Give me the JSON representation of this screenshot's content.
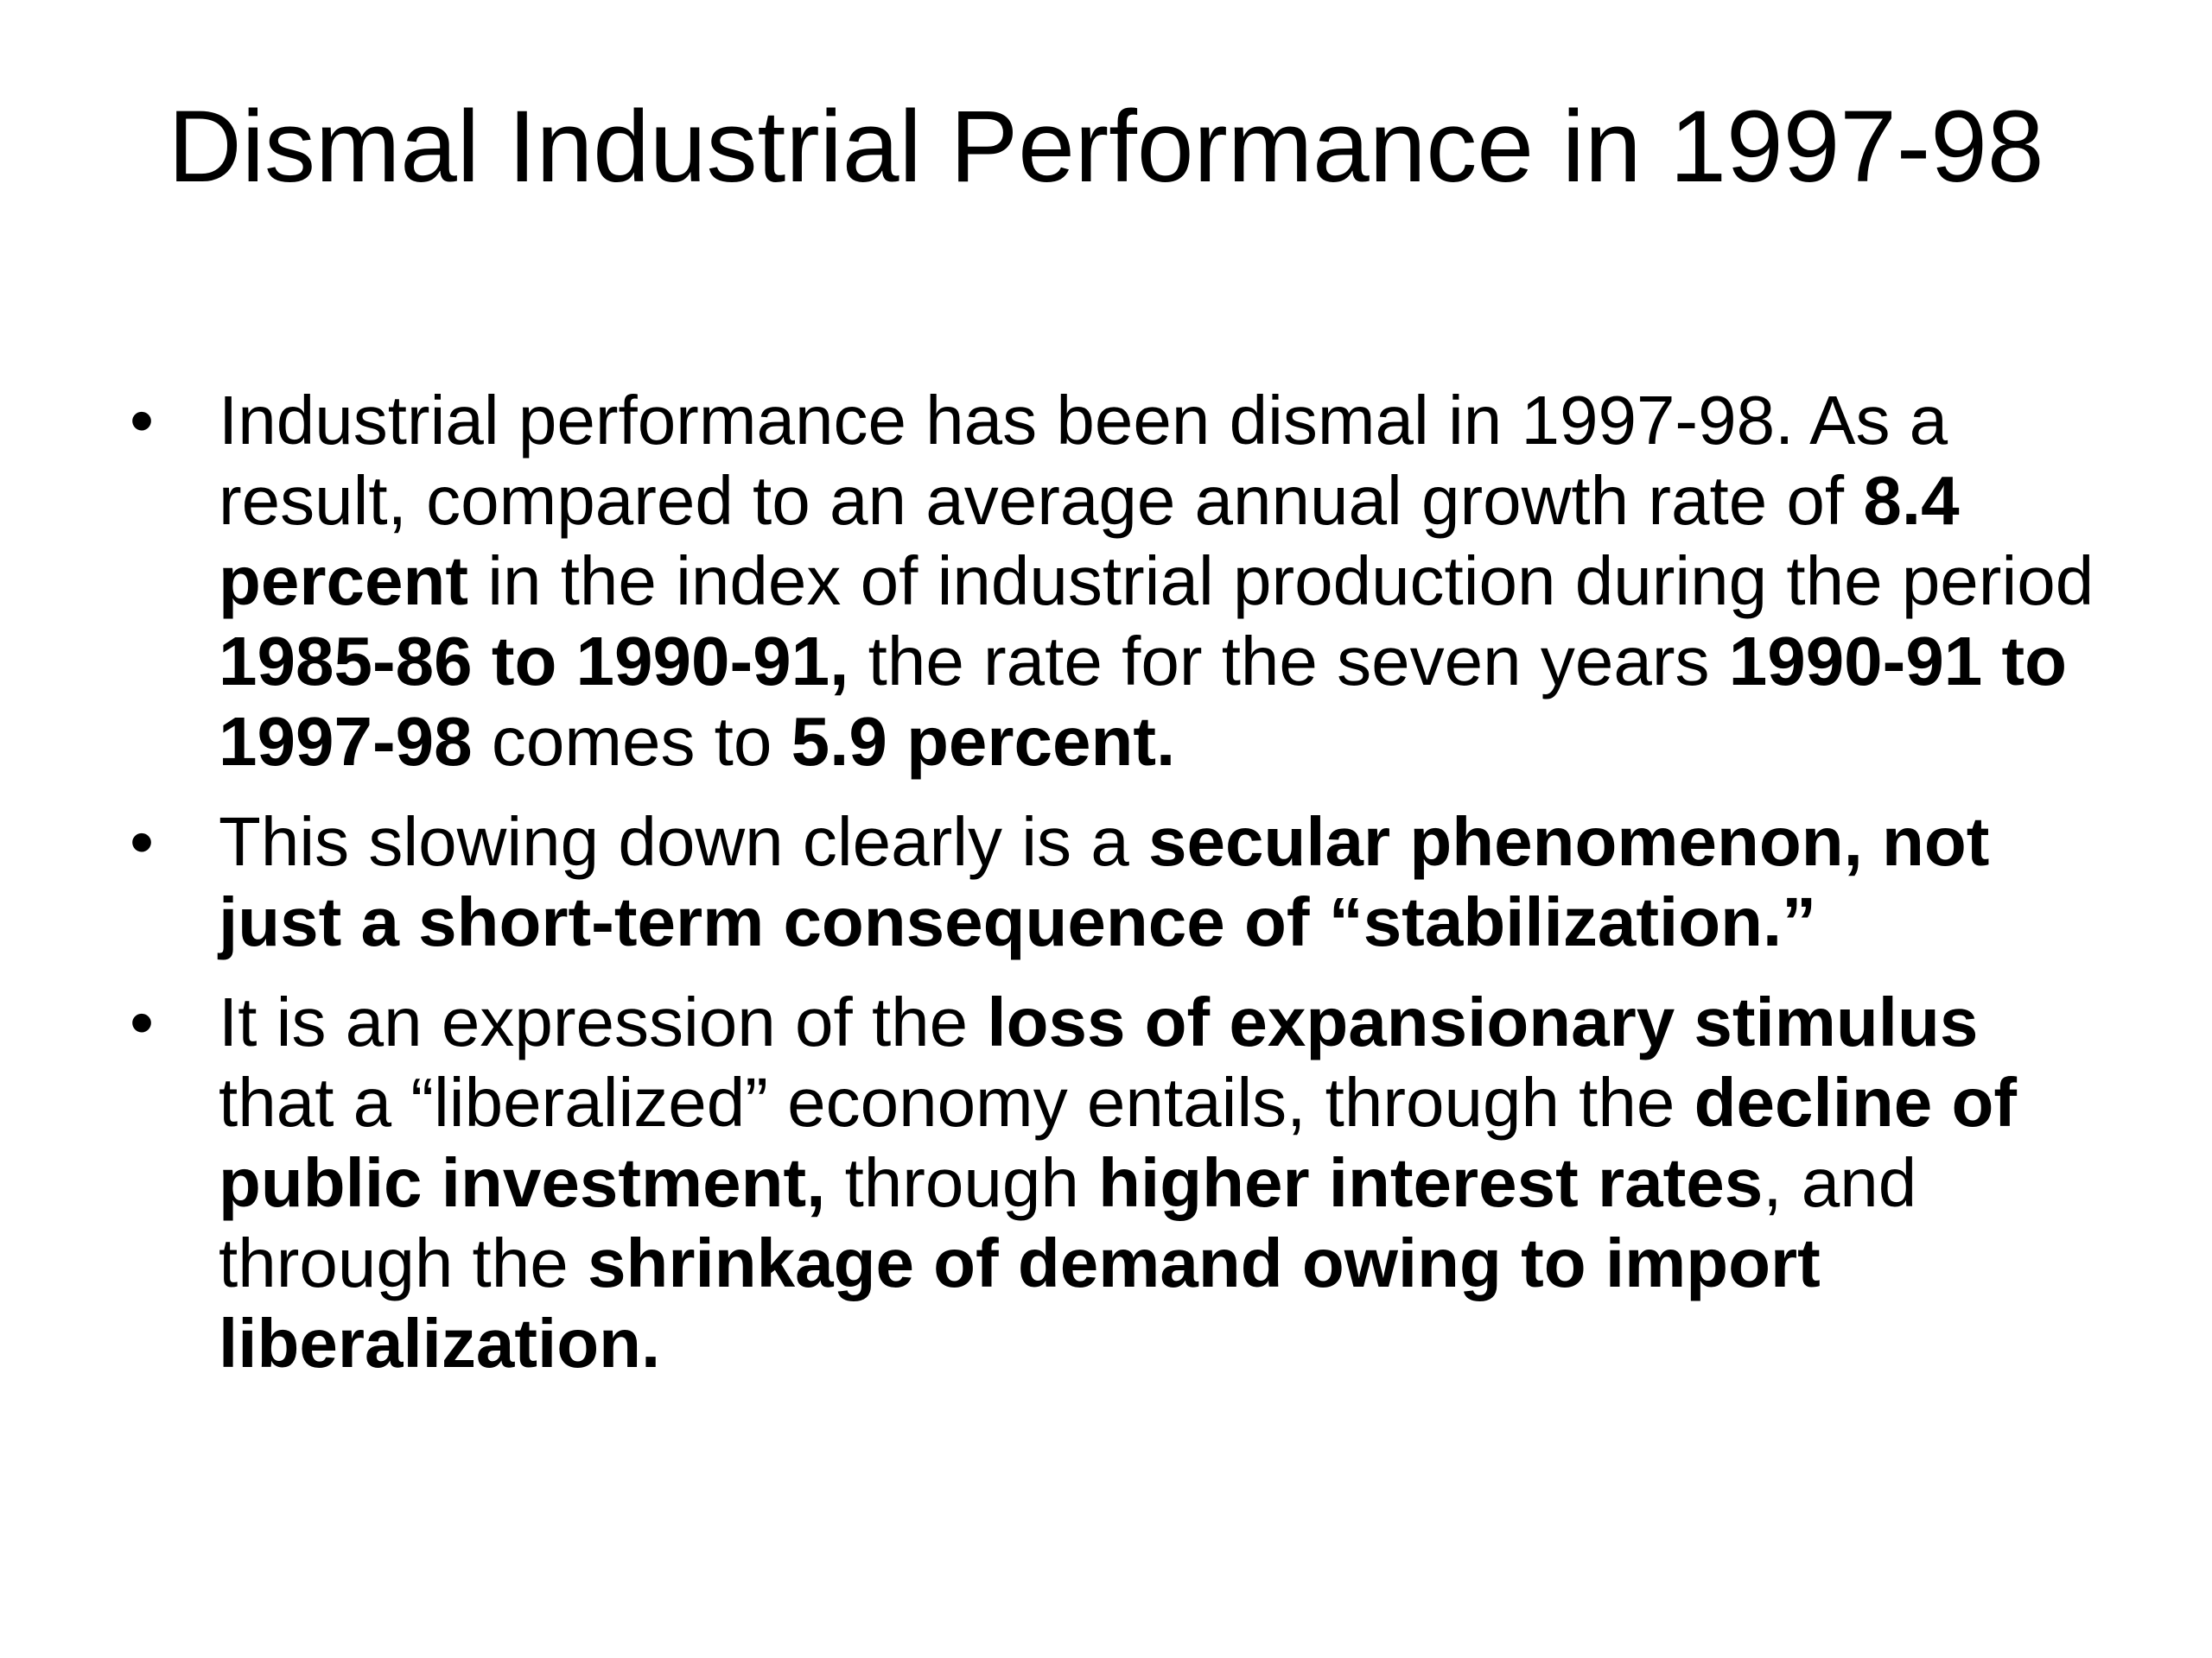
{
  "slide": {
    "title": "Dismal Industrial Performance in 1997-98",
    "bullet_char": "•",
    "bullets": [
      {
        "segments": [
          {
            "text": "Industrial performance has been dismal in 1997-98. As a result, compared to an average annual growth rate of ",
            "bold": false
          },
          {
            "text": "8.4 percent",
            "bold": true
          },
          {
            "text": " in the index of industrial production during the period ",
            "bold": false
          },
          {
            "text": "1985-86 to 1990-91,",
            "bold": true
          },
          {
            "text": " the rate for the seven years ",
            "bold": false
          },
          {
            "text": "1990-91 to 1997-98",
            "bold": true
          },
          {
            "text": " comes to ",
            "bold": false
          },
          {
            "text": "5.9 percent.",
            "bold": true
          }
        ]
      },
      {
        "segments": [
          {
            "text": "This slowing down clearly is a ",
            "bold": false
          },
          {
            "text": "secular phenomenon, not just a short-term consequence of “stabilization.”",
            "bold": true
          }
        ]
      },
      {
        "segments": [
          {
            "text": " It is an expression of the ",
            "bold": false
          },
          {
            "text": "loss of expansionary stimulus",
            "bold": true
          },
          {
            "text": " that a “liberalized” economy entails, through the ",
            "bold": false
          },
          {
            "text": "decline of public investment,",
            "bold": true
          },
          {
            "text": " through ",
            "bold": false
          },
          {
            "text": "higher interest rates",
            "bold": true
          },
          {
            "text": ", and through the ",
            "bold": false
          },
          {
            "text": "shrinkage of demand owing to import liberalization.",
            "bold": true
          }
        ]
      }
    ]
  }
}
